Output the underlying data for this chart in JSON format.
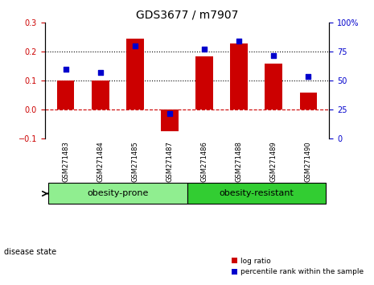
{
  "title": "GDS3677 / m7907",
  "samples": [
    "GSM271483",
    "GSM271484",
    "GSM271485",
    "GSM271487",
    "GSM271486",
    "GSM271488",
    "GSM271489",
    "GSM271490"
  ],
  "log_ratio": [
    0.1,
    0.1,
    0.245,
    -0.075,
    0.185,
    0.23,
    0.16,
    0.06
  ],
  "percentile_rank": [
    60,
    57,
    80,
    22,
    77,
    84,
    72,
    54
  ],
  "groups": [
    {
      "label": "obesity-prone",
      "indices": [
        0,
        1,
        2,
        3
      ],
      "color": "#90EE90"
    },
    {
      "label": "obesity-resistant",
      "indices": [
        4,
        5,
        6,
        7
      ],
      "color": "#32CD32"
    }
  ],
  "bar_color": "#CC0000",
  "dot_color": "#0000CC",
  "ylim_left": [
    -0.1,
    0.3
  ],
  "ylim_right": [
    0,
    100
  ],
  "yticks_left": [
    -0.1,
    0.0,
    0.1,
    0.2,
    0.3
  ],
  "yticks_right": [
    0,
    25,
    50,
    75,
    100
  ],
  "ytick_right_labels": [
    "0",
    "25",
    "50",
    "75",
    "100%"
  ],
  "hlines": [
    0.1,
    0.2
  ],
  "zero_line": 0.0,
  "background_color": "#ffffff",
  "disease_state_label": "disease state",
  "legend_log_ratio": "log ratio",
  "legend_percentile": "percentile rank within the sample"
}
